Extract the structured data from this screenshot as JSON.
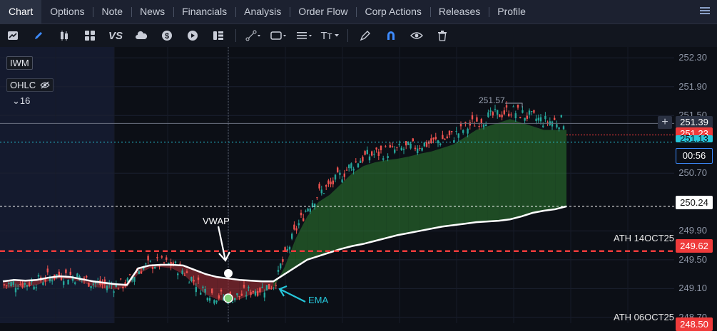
{
  "tabs": [
    {
      "label": "Chart",
      "active": true
    },
    {
      "label": "Options"
    },
    {
      "label": "Note"
    },
    {
      "label": "News"
    },
    {
      "label": "Financials"
    },
    {
      "label": "Analysis"
    },
    {
      "label": "Order Flow"
    },
    {
      "label": "Corp Actions"
    },
    {
      "label": "Releases"
    },
    {
      "label": "Profile"
    }
  ],
  "toolbar_icons": [
    "chart-style-icon",
    "pen-icon",
    "candles-icon",
    "layout-icon",
    "vs-icon",
    "cloud-icon",
    "dollar-icon",
    "replay-icon",
    "list-icon",
    "line-tool-icon",
    "rectangle-tool-icon",
    "fib-tool-icon",
    "text-tool-icon",
    "brush-icon",
    "magnet-icon",
    "eye-icon",
    "trash-icon"
  ],
  "toolbar": {
    "vs_label": "VS",
    "text_tool_label": "Tт"
  },
  "legend": {
    "symbol": "IWM",
    "indicator": "OHLC",
    "collapse": "⌄16"
  },
  "y_ticks": [
    "252.30",
    "251.90",
    "251.50",
    "250.70",
    "249.90",
    "249.50",
    "249.10",
    "248.70"
  ],
  "price_labels": {
    "crosshair": "251.39",
    "last": "251.23",
    "cyan": "251.13",
    "countdown": "00:56",
    "vwap_level": "250.24",
    "ath_oct14": "249.62",
    "ath_oct06": "248.50"
  },
  "annotations": {
    "high_label": "251.57",
    "vwap": "VWAP",
    "ema": "EMA",
    "ath_oct14": "ATH 14OCT25",
    "ath_oct06": "ATH 06OCT25"
  },
  "colors": {
    "up": "#26a69a",
    "down": "#ef5350",
    "red_line": "#ef3b3b",
    "cyan": "#26c6da",
    "vwap": "#ffffff",
    "fill_up": "#2e7d32",
    "fill_down": "#8b2a30"
  },
  "chart_data": {
    "type": "candlestick",
    "ylim": [
      248.62,
      252.45
    ],
    "levels": {
      "ath_14oct25": 249.62,
      "ath_06oct25": 248.5,
      "vwap_now": 250.24,
      "last": 251.23,
      "crosshair": 251.39,
      "cyan": 251.13
    },
    "vwap": [
      249.2,
      249.22,
      249.21,
      249.22,
      249.25,
      249.27,
      249.26,
      249.23,
      249.2,
      249.18,
      249.16,
      249.15,
      249.38,
      249.42,
      249.43,
      249.43,
      249.42,
      249.36,
      249.3,
      249.26,
      249.24,
      249.22,
      249.21,
      249.2,
      249.2,
      249.3,
      249.4,
      249.5,
      249.55,
      249.6,
      249.65,
      249.69,
      249.72,
      249.76,
      249.8,
      249.84,
      249.87,
      249.9,
      249.93,
      249.96,
      249.98,
      250.0,
      250.02,
      250.03,
      250.04,
      250.06,
      250.1,
      250.15,
      250.18,
      250.2,
      250.24
    ],
    "ema": [
      249.1,
      249.12,
      249.12,
      249.15,
      249.2,
      249.24,
      249.23,
      249.19,
      249.13,
      249.1,
      249.09,
      249.12,
      249.3,
      249.38,
      249.4,
      249.38,
      249.3,
      249.15,
      249.02,
      248.95,
      248.92,
      248.95,
      249.02,
      249.05,
      249.1,
      249.4,
      249.8,
      250.1,
      250.3,
      250.4,
      250.55,
      250.7,
      250.8,
      250.85,
      250.88,
      250.9,
      250.93,
      250.97,
      251.0,
      251.05,
      251.1,
      251.2,
      251.3,
      251.35,
      251.4,
      251.45,
      251.4,
      251.35,
      251.3,
      251.3,
      251.3
    ]
  }
}
